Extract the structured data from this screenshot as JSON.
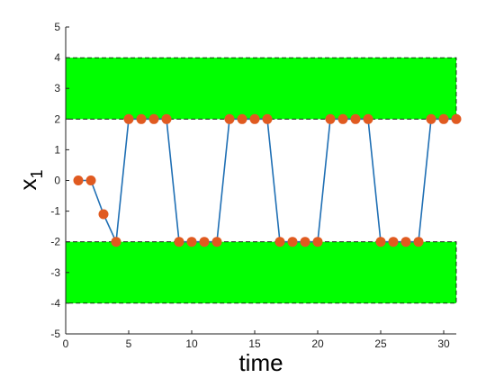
{
  "chart_data": {
    "type": "line",
    "xlabel": "time",
    "ylabel_main": "x",
    "ylabel_sub": "1",
    "xlim": [
      0,
      31
    ],
    "ylim": [
      -5,
      5
    ],
    "xticks": [
      0,
      5,
      10,
      15,
      20,
      25,
      30
    ],
    "yticks": [
      -5,
      -4,
      -3,
      -2,
      -1,
      0,
      1,
      2,
      3,
      4,
      5
    ],
    "xtick_labels": [
      "0",
      "5",
      "10",
      "15",
      "20",
      "25",
      "30"
    ],
    "ytick_labels": [
      "-5",
      "-4",
      "-3",
      "-2",
      "-1",
      "0",
      "1",
      "2",
      "3",
      "4",
      "5"
    ],
    "grid": false,
    "regions": [
      {
        "y_min": 2,
        "y_max": 4,
        "color": "#00ff00"
      },
      {
        "y_min": -4,
        "y_max": -2,
        "color": "#00ff00"
      }
    ],
    "series": [
      {
        "line_color": "#1f6fb4",
        "marker_color": "#e05a20",
        "x": [
          1,
          2,
          3,
          4,
          5,
          6,
          7,
          8,
          9,
          10,
          11,
          12,
          13,
          14,
          15,
          16,
          17,
          18,
          19,
          20,
          21,
          22,
          23,
          24,
          25,
          26,
          27,
          28,
          29,
          30,
          31
        ],
        "y": [
          0,
          0,
          -1.1,
          -2,
          2,
          2,
          2,
          2,
          -2,
          -2,
          -2,
          -2,
          2,
          2,
          2,
          2,
          -2,
          -2,
          -2,
          -2,
          2,
          2,
          2,
          2,
          -2,
          -2,
          -2,
          -2,
          2,
          2,
          2
        ]
      }
    ]
  }
}
